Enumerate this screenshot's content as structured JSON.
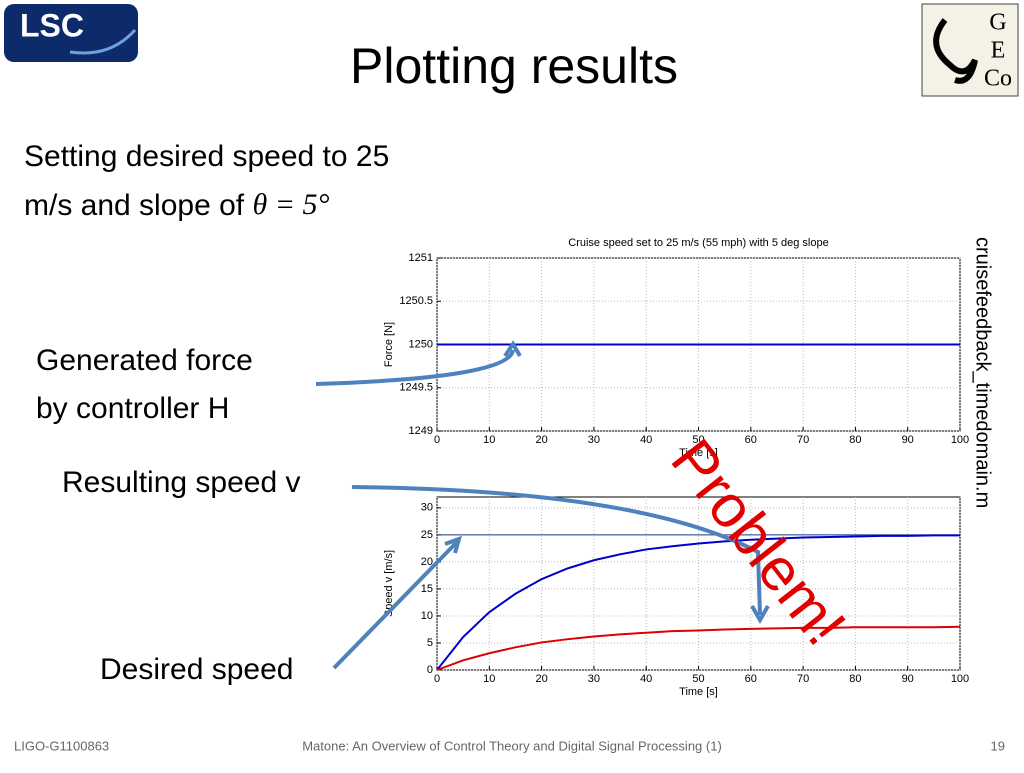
{
  "slide": {
    "title": "Plotting results",
    "logo_left": "LSC",
    "logo_right": [
      "G",
      "E",
      "Co"
    ],
    "body": [
      "Setting desired speed to 25",
      "m/s and slope of "
    ],
    "math": "θ = 5°",
    "annotations": {
      "force": [
        "Generated force",
        "by controller H"
      ],
      "speed": "Resulting speed v",
      "desired": "Desired speed",
      "problem": "Problem!",
      "file": "cruisefeedback_timedomain.m"
    },
    "footer": {
      "left": "LIGO-G1100863",
      "center": "Matone: An Overview of Control Theory and Digital Signal Processing (1)",
      "page": "19"
    }
  },
  "chart_data": [
    {
      "type": "line",
      "title": "Cruise speed set to 25 m/s (55 mph) with 5 deg slope",
      "x_label": "Time [s]",
      "y_label": "Force [N]",
      "xlim": [
        0,
        100
      ],
      "xticks": [
        0,
        10,
        20,
        30,
        40,
        50,
        60,
        70,
        80,
        90,
        100
      ],
      "ylim": [
        1249,
        1251
      ],
      "yticks": [
        1249,
        1249.5,
        1250,
        1250.5,
        1251
      ],
      "grid": true,
      "series": [
        {
          "color": "#0000cc",
          "x": [
            0,
            100
          ],
          "values": [
            1250,
            1250
          ]
        }
      ]
    },
    {
      "type": "line",
      "x_label": "Time [s]",
      "y_label": "Speed v [m/s]",
      "xlim": [
        0,
        100
      ],
      "xticks": [
        0,
        10,
        20,
        30,
        40,
        50,
        60,
        70,
        80,
        90,
        100
      ],
      "ylim": [
        0,
        32
      ],
      "yticks": [
        0,
        5,
        10,
        15,
        20,
        25,
        30
      ],
      "grid": true,
      "series": [
        {
          "color": "#1a3a8a",
          "x": [
            0,
            100
          ],
          "values": [
            25,
            25
          ]
        },
        {
          "color": "#0000cc",
          "x": [
            0,
            5,
            10,
            15,
            20,
            25,
            30,
            35,
            40,
            45,
            50,
            55,
            60,
            65,
            70,
            75,
            80,
            85,
            90,
            95,
            100
          ],
          "values": [
            0,
            6.1,
            10.7,
            14.1,
            16.8,
            18.8,
            20.3,
            21.4,
            22.3,
            22.9,
            23.4,
            23.8,
            24.1,
            24.3,
            24.5,
            24.6,
            24.7,
            24.8,
            24.8,
            24.9,
            24.9
          ]
        },
        {
          "color": "#dd0000",
          "x": [
            0,
            5,
            10,
            15,
            20,
            25,
            30,
            35,
            40,
            45,
            50,
            55,
            60,
            65,
            70,
            75,
            80,
            85,
            90,
            95,
            100
          ],
          "values": [
            0,
            1.8,
            3.1,
            4.2,
            5.1,
            5.7,
            6.2,
            6.6,
            6.9,
            7.2,
            7.3,
            7.5,
            7.6,
            7.7,
            7.8,
            7.8,
            7.9,
            7.9,
            7.9,
            7.9,
            8.0
          ]
        }
      ]
    }
  ]
}
